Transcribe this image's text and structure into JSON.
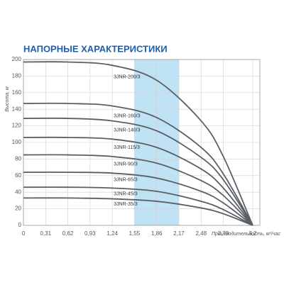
{
  "chart_data": {
    "type": "line",
    "title": "НАПОРНЫЕ ХАРАКТЕРИСТИКИ",
    "y_label": "Высота, м",
    "x_label": "Производительность, м³/час",
    "x": [
      0,
      0.62,
      1.24,
      1.86,
      2.48,
      2.79,
      3.2
    ],
    "xlim": [
      0,
      3.3
    ],
    "xticks": [
      0,
      {
        "value": 0.31,
        "label": "0,31"
      },
      {
        "value": 0.62,
        "label": "0,62"
      },
      {
        "value": 0.93,
        "label": "0,93"
      },
      {
        "value": 1.24,
        "label": "1,24"
      },
      {
        "value": 1.55,
        "label": "1,55"
      },
      {
        "value": 1.86,
        "label": "1,86"
      },
      {
        "value": 2.17,
        "label": "2,17"
      },
      {
        "value": 2.48,
        "label": "2,48"
      },
      {
        "value": 2.79,
        "label": "2,79"
      },
      {
        "value": 3.2,
        "label": "3,2"
      }
    ],
    "ylim": [
      0,
      200
    ],
    "yticks": [
      0,
      20,
      40,
      60,
      80,
      100,
      120,
      140,
      160,
      180,
      200
    ],
    "grid": true,
    "highlight_range": [
      1.55,
      2.17
    ],
    "highlight_color": "#bfe3f5",
    "series": [
      {
        "name": "3JNR-200/3",
        "color": "#5a5f66",
        "values": [
          197,
          197,
          193,
          175,
          126,
          83,
          0
        ]
      },
      {
        "name": "3JNR-160/3",
        "color": "#5a5f66",
        "values": [
          147,
          147,
          144,
          130,
          94,
          62,
          0
        ]
      },
      {
        "name": "3JNR-140/3",
        "color": "#5a5f66",
        "values": [
          129,
          129,
          126,
          114,
          82,
          55,
          0
        ]
      },
      {
        "name": "3JNR-115/3",
        "color": "#5a5f66",
        "values": [
          106,
          106,
          104,
          94,
          68,
          45,
          0
        ]
      },
      {
        "name": "3JNR-90/3",
        "color": "#5a5f66",
        "values": [
          85,
          85,
          83,
          75,
          54,
          36,
          0
        ]
      },
      {
        "name": "3JNR-65/3",
        "color": "#5a5f66",
        "values": [
          64,
          64,
          63,
          57,
          41,
          27,
          0
        ]
      },
      {
        "name": "3JNR-45/3",
        "color": "#5a5f66",
        "values": [
          46,
          46,
          45,
          41,
          29,
          19,
          0
        ]
      },
      {
        "name": "3JNR-35/3",
        "color": "#5a5f66",
        "values": [
          33,
          33,
          32,
          29,
          21,
          14,
          0
        ]
      }
    ]
  }
}
